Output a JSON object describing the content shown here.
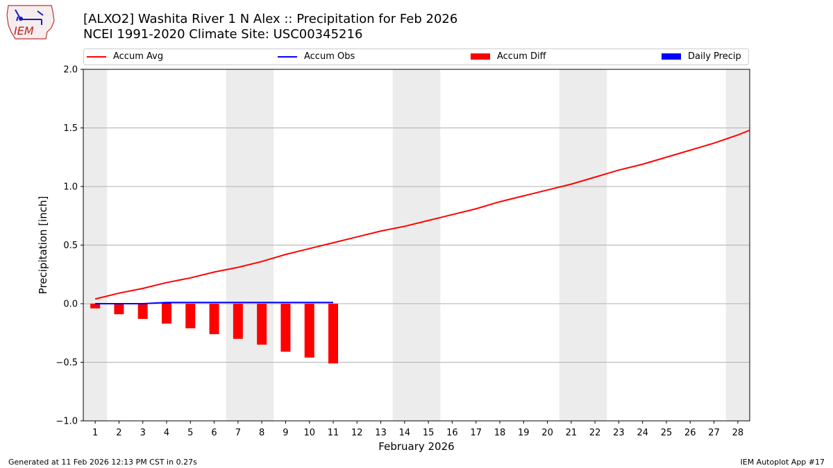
{
  "header": {
    "logo_text": "IEM",
    "title_line1": "[ALXO2] Washita River 1 N Alex :: Precipitation for Feb 2026",
    "title_line2": "NCEI 1991-2020 Climate Site: USC00345216"
  },
  "legend": [
    {
      "label": "Accum Avg",
      "kind": "line",
      "color": "#ff0000"
    },
    {
      "label": "Accum Obs",
      "kind": "line",
      "color": "#0000ff"
    },
    {
      "label": "Accum Diff",
      "kind": "box",
      "color": "#ff0000"
    },
    {
      "label": "Daily Precip",
      "kind": "box",
      "color": "#0000ff"
    }
  ],
  "footer": {
    "generated": "Generated at 11 Feb 2026 12:13 PM CST in 0.27s",
    "app": "IEM Autoplot App #17"
  },
  "chart_data": {
    "type": "line",
    "title": "[ALXO2] Washita River 1 N Alex :: Precipitation for Feb 2026",
    "subtitle": "NCEI 1991-2020 Climate Site: USC00345216",
    "xlabel": "February 2026",
    "ylabel": "Precipitation [inch]",
    "xlim": [
      0.5,
      28.5
    ],
    "ylim": [
      -1.0,
      2.0
    ],
    "yticks": [
      -1.0,
      -0.5,
      0.0,
      0.5,
      1.0,
      1.5,
      2.0
    ],
    "ytick_labels": [
      "−1.0",
      "−0.5",
      "0.0",
      "0.5",
      "1.0",
      "1.5",
      "2.0"
    ],
    "xticks": [
      1,
      2,
      3,
      4,
      5,
      6,
      7,
      8,
      9,
      10,
      11,
      12,
      13,
      14,
      15,
      16,
      17,
      18,
      19,
      20,
      21,
      22,
      23,
      24,
      25,
      26,
      27,
      28
    ],
    "weekend_shading": [
      [
        0.5,
        1.5
      ],
      [
        6.5,
        8.5
      ],
      [
        13.5,
        15.5
      ],
      [
        20.5,
        22.5
      ],
      [
        27.5,
        28.5
      ]
    ],
    "grid": true,
    "series": [
      {
        "name": "Accum Avg",
        "type": "line",
        "color": "#ff0000",
        "x": [
          1,
          2,
          3,
          4,
          5,
          6,
          7,
          8,
          9,
          10,
          11,
          12,
          13,
          14,
          15,
          16,
          17,
          18,
          19,
          20,
          21,
          22,
          23,
          24,
          25,
          26,
          27,
          28,
          28.5
        ],
        "values": [
          0.04,
          0.09,
          0.13,
          0.18,
          0.22,
          0.27,
          0.31,
          0.36,
          0.42,
          0.47,
          0.52,
          0.57,
          0.62,
          0.66,
          0.71,
          0.76,
          0.81,
          0.87,
          0.92,
          0.97,
          1.02,
          1.08,
          1.14,
          1.19,
          1.25,
          1.31,
          1.37,
          1.44,
          1.48
        ]
      },
      {
        "name": "Accum Obs",
        "type": "line",
        "color": "#0000ff",
        "x": [
          1,
          2,
          3,
          4,
          5,
          6,
          7,
          8,
          9,
          10,
          11
        ],
        "values": [
          0.0,
          0.0,
          0.0,
          0.01,
          0.01,
          0.01,
          0.01,
          0.01,
          0.01,
          0.01,
          0.01
        ]
      },
      {
        "name": "Accum Diff",
        "type": "bar",
        "color": "#ff0000",
        "x": [
          1,
          2,
          3,
          4,
          5,
          6,
          7,
          8,
          9,
          10,
          11
        ],
        "values": [
          -0.04,
          -0.09,
          -0.13,
          -0.17,
          -0.21,
          -0.26,
          -0.3,
          -0.35,
          -0.41,
          -0.46,
          -0.51
        ]
      },
      {
        "name": "Daily Precip",
        "type": "bar",
        "color": "#0000ff",
        "x": [
          1,
          2,
          3,
          4,
          5,
          6,
          7,
          8,
          9,
          10,
          11
        ],
        "values": [
          0.0,
          0.0,
          0.0,
          0.01,
          0.0,
          0.0,
          0.0,
          0.0,
          0.0,
          0.0,
          0.0
        ]
      }
    ]
  }
}
